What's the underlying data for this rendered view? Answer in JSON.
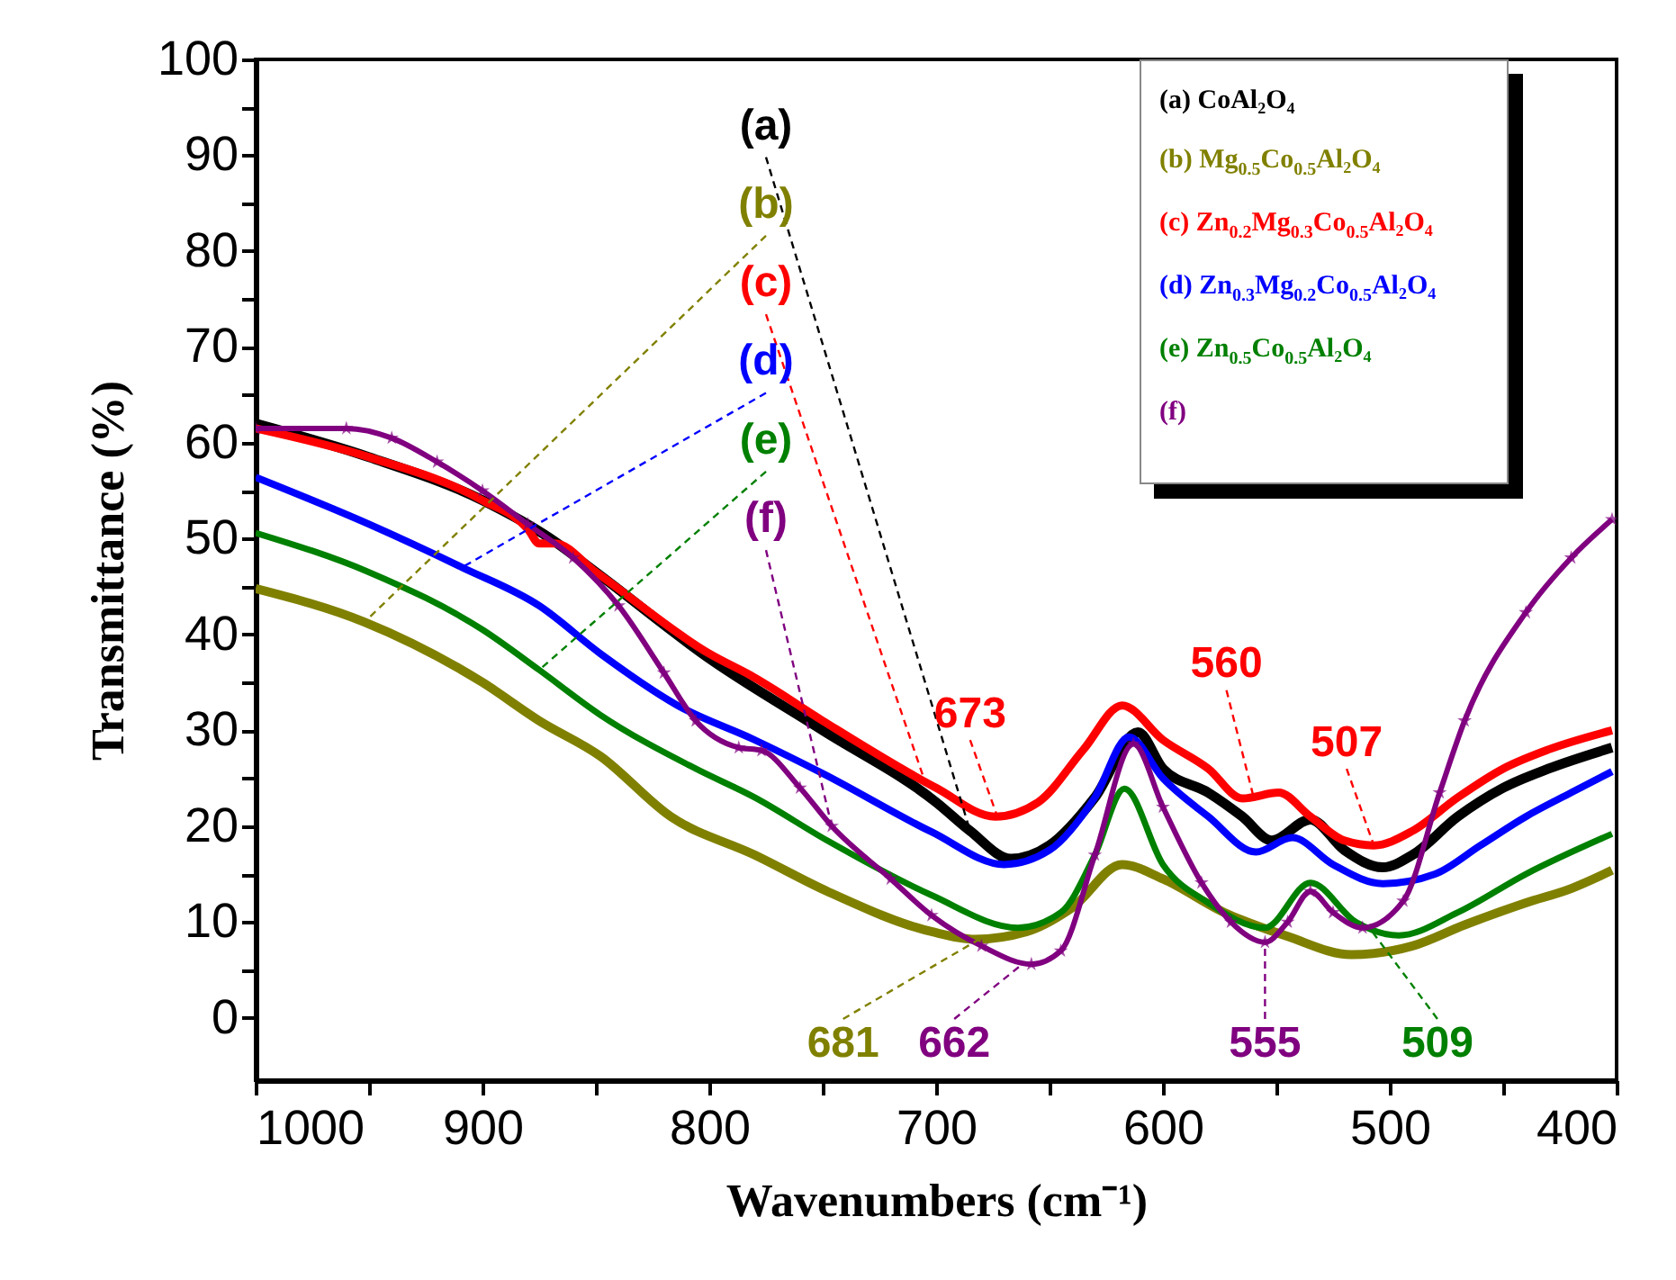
{
  "chart_data": {
    "type": "line",
    "xlabel": "Wavenumbers (cm⁻¹)",
    "ylabel": "Transmittance (%)",
    "xlim": [
      1000,
      400
    ],
    "ylim": [
      -6.5,
      100
    ],
    "xticks": [
      1000,
      {
        "value": 950,
        "label": null
      },
      900,
      {
        "value": 850,
        "label": null
      },
      800,
      {
        "value": 750,
        "label": null
      },
      700,
      {
        "value": 650,
        "label": null
      },
      600,
      {
        "value": 550,
        "label": null
      },
      500,
      {
        "value": 450,
        "label": null
      },
      400
    ],
    "yticks": [
      0,
      {
        "value": 5,
        "label": null
      },
      10,
      {
        "value": 15,
        "label": null
      },
      20,
      {
        "value": 25,
        "label": null
      },
      30,
      {
        "value": 35,
        "label": null
      },
      40,
      {
        "value": 45,
        "label": null
      },
      50,
      {
        "value": 55,
        "label": null
      },
      60,
      {
        "value": 65,
        "label": null
      },
      70,
      {
        "value": 75,
        "label": null
      },
      80,
      {
        "value": 85,
        "label": null
      },
      90,
      {
        "value": 95,
        "label": null
      },
      100
    ],
    "grid": false,
    "legend": "top right",
    "series": [
      {
        "name": "(a) CoAl₂O₄",
        "color": "#000000",
        "x": [
          1000,
          950,
          900,
          870,
          850,
          800,
          750,
          700,
          685,
          667,
          650,
          630,
          611,
          600,
          580,
          565,
          552,
          535,
          520,
          503,
          490,
          470,
          450,
          430,
          402
        ],
        "values": [
          62,
          58.5,
          54,
          50,
          46.5,
          37.5,
          30,
          22.5,
          19.5,
          16.6,
          18,
          23,
          29.8,
          26,
          23.5,
          21,
          18.5,
          20.7,
          17.5,
          15.7,
          17,
          21,
          24,
          26,
          28.2
        ]
      },
      {
        "name": "(b) Mg$_{0.5}$Co$_{0.5}$Al₂O₄",
        "color": "#808000",
        "x": [
          1000,
          952,
          900,
          875,
          848,
          817,
          780,
          748,
          702,
          683,
          660,
          640,
          618,
          600,
          573,
          545,
          517,
          490,
          467,
          440,
          420,
          402
        ],
        "values": [
          44.8,
          41.3,
          35,
          31,
          27.3,
          21,
          17,
          13.2,
          9,
          8.2,
          9,
          11.5,
          16,
          14.5,
          11,
          8.5,
          6.6,
          7.5,
          9.7,
          12,
          13.5,
          15.4
        ]
      },
      {
        "name": "(c) Zn$_{0.2}$Mg$_{0.3}$Co$_{0.5}$Al₂O₄",
        "color": "#ff0000",
        "x": [
          1000,
          950,
          900,
          880,
          875,
          868,
          850,
          800,
          780,
          750,
          700,
          674,
          655,
          635,
          618,
          600,
          580,
          565,
          549,
          535,
          520,
          507,
          490,
          470,
          450,
          430,
          402
        ],
        "values": [
          61.5,
          58.5,
          54,
          51,
          49.5,
          49.5,
          46.5,
          38,
          35.5,
          31,
          24,
          21,
          22.5,
          28,
          32.6,
          29,
          26,
          22.9,
          23.5,
          21,
          18.5,
          18,
          19.5,
          23,
          26,
          28,
          30
        ]
      },
      {
        "name": "(d) Zn$_{0.3}$Mg$_{0.2}$Co$_{0.5}$Al₂O₄",
        "color": "#0000ff",
        "x": [
          1000,
          950,
          909,
          875,
          848,
          814,
          780,
          750,
          702,
          670,
          650,
          630,
          615,
          600,
          580,
          559,
          543,
          525,
          503,
          480,
          460,
          440,
          420,
          402
        ],
        "values": [
          56.4,
          51.5,
          47,
          43,
          38,
          32.6,
          29,
          25.5,
          19.4,
          16,
          17.5,
          23,
          29.3,
          25,
          21,
          17.3,
          18.8,
          16,
          14,
          15,
          18,
          21,
          23.5,
          25.7
        ]
      },
      {
        "name": "(e) Zn$_{0.5}$Co$_{0.5}$Al₂O₄",
        "color": "#008000",
        "x": [
          1000,
          950,
          900,
          875,
          848,
          806,
          780,
          748,
          702,
          664,
          645,
          630,
          617,
          600,
          580,
          555,
          535,
          515,
          496,
          470,
          440,
          402
        ],
        "values": [
          50.6,
          46.5,
          40.5,
          36.3,
          31.6,
          26,
          23,
          18.5,
          12.8,
          9.4,
          11,
          17,
          23.9,
          16,
          12,
          9.4,
          14.1,
          10,
          8.6,
          11,
          15,
          19.2
        ]
      },
      {
        "name": "(f)",
        "color": "#800080",
        "marker": "star",
        "x": [
          1000,
          960,
          940,
          920,
          900,
          880,
          860,
          840,
          820,
          806,
          787,
          777,
          760,
          746,
          720,
          702,
          680,
          658,
          645,
          630,
          613,
          600,
          583,
          570,
          555,
          545,
          535,
          525,
          512,
          494,
          478,
          467,
          440,
          420,
          402
        ],
        "values": [
          61.5,
          61.5,
          60.5,
          58,
          55,
          51.5,
          48,
          43,
          36,
          31,
          28.2,
          27.9,
          24,
          20,
          14.5,
          10.7,
          7.5,
          5.6,
          7,
          17,
          28.6,
          22,
          14.1,
          10,
          7.9,
          10,
          13.2,
          11,
          9.4,
          12.2,
          23.5,
          31,
          42.3,
          48,
          52
        ]
      }
    ],
    "annotations": [
      {
        "text": "(a)",
        "x": 685,
        "y": 19.5
      },
      {
        "text": "(b)",
        "x": 952,
        "y": 41.3
      },
      {
        "text": "(c)",
        "x": 705,
        "y": 24.7
      },
      {
        "text": "(d)",
        "x": 909,
        "y": 47
      },
      {
        "text": "(e)",
        "x": 875,
        "y": 36.3
      },
      {
        "text": "(f)",
        "x": 746,
        "y": 20
      },
      {
        "text": "673",
        "x": 673,
        "y": 21
      },
      {
        "text": "560",
        "x": 560,
        "y": 23
      },
      {
        "text": "507",
        "x": 507,
        "y": 18
      },
      {
        "text": "681",
        "x": 681,
        "y": 8.2
      },
      {
        "text": "662",
        "x": 662,
        "y": 5.6
      },
      {
        "text": "555",
        "x": 555,
        "y": 7.9
      },
      {
        "text": "509",
        "x": 509,
        "y": 9.4
      }
    ]
  }
}
